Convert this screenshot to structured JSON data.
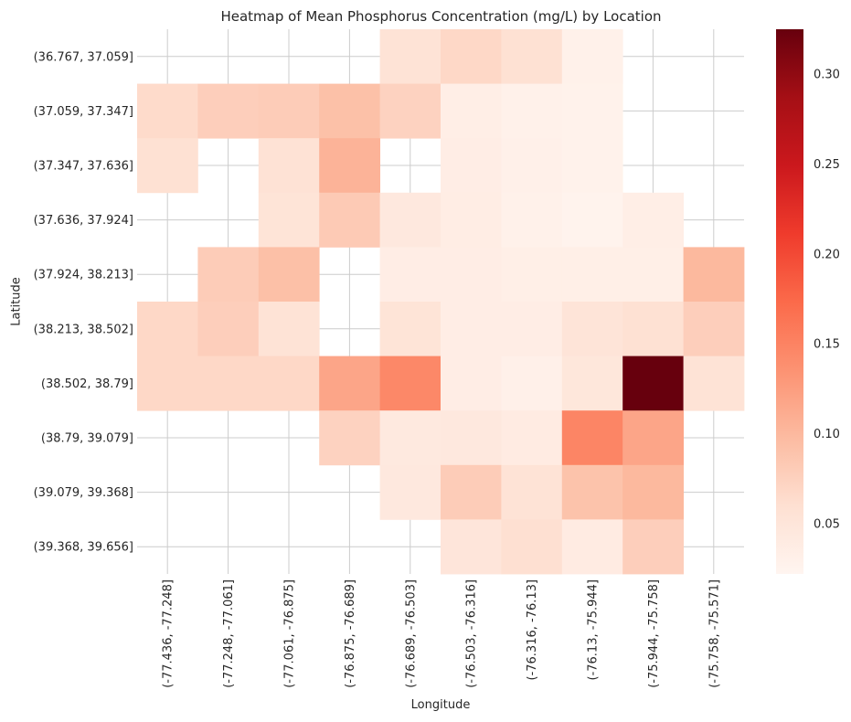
{
  "chart_data": {
    "type": "heatmap",
    "title": "Heatmap of Mean Phosphorus Concentration (mg/L) by Location",
    "xlabel": "Longitude",
    "ylabel": "Latitude",
    "x_categories": [
      "(-77.436, -77.248]",
      "(-77.248, -77.061]",
      "(-77.061, -76.875]",
      "(-76.875, -76.689]",
      "(-76.689, -76.503]",
      "(-76.503, -76.316]",
      "(-76.316, -76.13]",
      "(-76.13, -75.944]",
      "(-75.944, -75.758]",
      "(-75.758, -75.571]"
    ],
    "y_categories": [
      "(36.767, 37.059]",
      "(37.059, 37.347]",
      "(37.347, 37.636]",
      "(37.636, 37.924]",
      "(37.924, 38.213]",
      "(38.213, 38.502]",
      "(38.502, 38.79]",
      "(38.79, 39.079]",
      "(39.079, 39.368]",
      "(39.368, 39.656]"
    ],
    "values": [
      [
        null,
        null,
        null,
        null,
        0.055,
        0.068,
        0.058,
        0.03,
        null,
        null
      ],
      [
        0.065,
        0.078,
        0.08,
        0.092,
        0.074,
        0.035,
        0.029,
        0.028,
        null,
        null
      ],
      [
        0.058,
        null,
        0.056,
        0.105,
        null,
        0.036,
        0.031,
        0.028,
        null,
        null
      ],
      [
        null,
        null,
        0.053,
        0.082,
        0.045,
        0.037,
        0.029,
        0.026,
        0.034,
        null
      ],
      [
        null,
        0.08,
        0.093,
        null,
        0.036,
        0.036,
        0.033,
        0.033,
        0.033,
        0.1
      ],
      [
        0.068,
        0.078,
        0.055,
        null,
        0.053,
        0.036,
        0.036,
        0.052,
        0.058,
        0.078
      ],
      [
        0.068,
        0.068,
        0.068,
        0.118,
        0.145,
        0.036,
        0.031,
        0.048,
        0.325,
        0.055
      ],
      [
        null,
        null,
        null,
        0.074,
        0.043,
        0.045,
        0.04,
        0.148,
        0.118,
        null
      ],
      [
        null,
        null,
        null,
        null,
        0.045,
        0.08,
        0.055,
        0.09,
        0.1,
        null
      ],
      [
        null,
        null,
        null,
        null,
        null,
        0.05,
        0.06,
        0.04,
        0.078,
        null
      ]
    ],
    "colorbar": {
      "min": 0.022,
      "max": 0.325,
      "ticks": [
        0.05,
        0.1,
        0.15,
        0.2,
        0.25,
        0.3
      ],
      "tick_labels": [
        "0.05",
        "0.10",
        "0.15",
        "0.20",
        "0.25",
        "0.30"
      ]
    },
    "colormap": "Reds",
    "grid": true
  }
}
